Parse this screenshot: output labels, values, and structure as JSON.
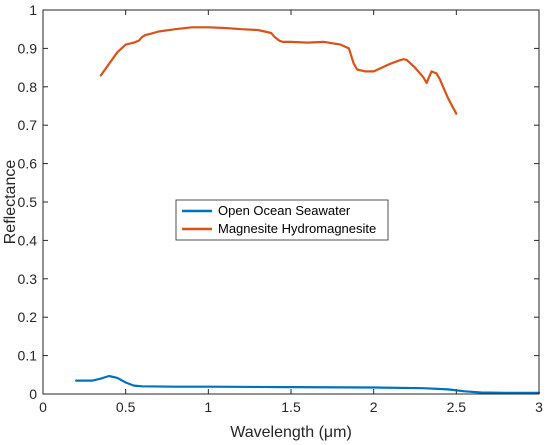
{
  "chart_data": {
    "type": "line",
    "title": "",
    "xlabel": "Wavelength (μm)",
    "ylabel": "Reflectance",
    "xlim": [
      0,
      3
    ],
    "ylim": [
      0,
      1
    ],
    "xticks": [
      "0",
      "0.5",
      "1",
      "1.5",
      "2",
      "2.5",
      "3"
    ],
    "yticks": [
      "0",
      "0.1",
      "0.2",
      "0.3",
      "0.4",
      "0.5",
      "0.6",
      "0.7",
      "0.8",
      "0.9",
      "1"
    ],
    "grid": false,
    "legend_position": "center",
    "series": [
      {
        "name": "Open Ocean Seawater",
        "color": "#0072BD",
        "x": [
          0.2,
          0.3,
          0.35,
          0.4,
          0.45,
          0.5,
          0.55,
          0.6,
          0.8,
          1.0,
          1.5,
          2.0,
          2.3,
          2.45,
          2.55,
          2.65,
          2.8,
          3.0
        ],
        "y": [
          0.035,
          0.035,
          0.04,
          0.047,
          0.042,
          0.03,
          0.022,
          0.02,
          0.019,
          0.019,
          0.018,
          0.017,
          0.015,
          0.012,
          0.007,
          0.004,
          0.003,
          0.003
        ]
      },
      {
        "name": "Magnesite Hydromagnesite",
        "color": "#D95319",
        "x": [
          0.35,
          0.4,
          0.45,
          0.5,
          0.55,
          0.58,
          0.6,
          0.62,
          0.65,
          0.7,
          0.8,
          0.9,
          1.0,
          1.1,
          1.2,
          1.3,
          1.38,
          1.4,
          1.43,
          1.45,
          1.5,
          1.6,
          1.7,
          1.8,
          1.85,
          1.88,
          1.9,
          1.95,
          2.0,
          2.05,
          2.1,
          2.15,
          2.18,
          2.2,
          2.25,
          2.3,
          2.32,
          2.35,
          2.38,
          2.4,
          2.42,
          2.45,
          2.5
        ],
        "y": [
          0.83,
          0.86,
          0.89,
          0.91,
          0.915,
          0.92,
          0.93,
          0.935,
          0.938,
          0.944,
          0.95,
          0.955,
          0.955,
          0.953,
          0.95,
          0.948,
          0.94,
          0.93,
          0.92,
          0.917,
          0.917,
          0.915,
          0.917,
          0.91,
          0.9,
          0.86,
          0.845,
          0.84,
          0.84,
          0.85,
          0.86,
          0.868,
          0.872,
          0.87,
          0.85,
          0.825,
          0.81,
          0.84,
          0.835,
          0.82,
          0.8,
          0.77,
          0.73
        ]
      }
    ]
  }
}
